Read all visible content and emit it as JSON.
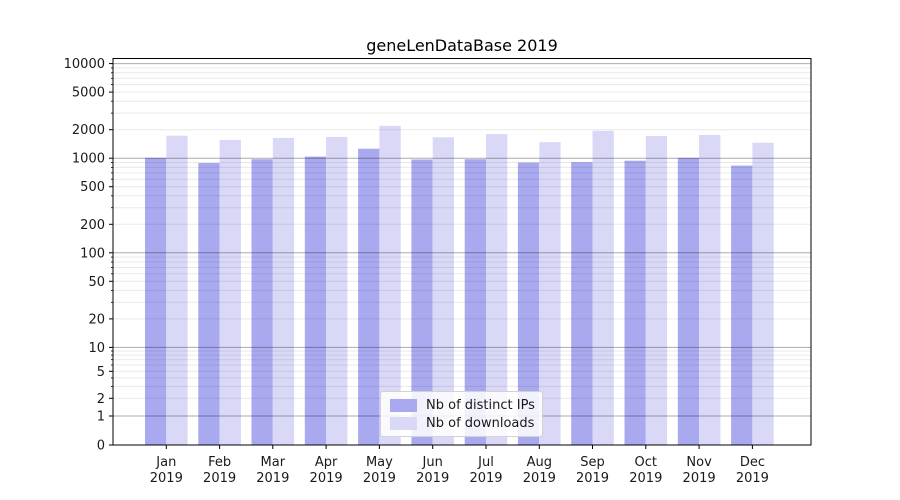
{
  "colors": {
    "distinct_ips": "#a9a9f0",
    "downloads": "#d9d9f7",
    "major_grid": "#adadad",
    "minor_grid": "#e9e9e9",
    "spine": "#000000",
    "tick_text": "#1a1a1a"
  },
  "chart_data": {
    "type": "bar",
    "title": "geneLenDataBase 2019",
    "categories": [
      "Jan",
      "Feb",
      "Mar",
      "Apr",
      "May",
      "Jun",
      "Jul",
      "Aug",
      "Sep",
      "Oct",
      "Nov",
      "Dec"
    ],
    "year_label": "2019",
    "series": [
      {
        "name": "Nb of distinct IPs",
        "key": "distinct_ips",
        "values": [
          1010,
          890,
          975,
          1040,
          1260,
          970,
          975,
          900,
          910,
          940,
          1010,
          835
        ]
      },
      {
        "name": "Nb of downloads",
        "key": "downloads",
        "values": [
          1730,
          1560,
          1640,
          1680,
          2200,
          1665,
          1800,
          1475,
          1950,
          1715,
          1760,
          1460
        ]
      }
    ],
    "xlabel": "",
    "ylabel": "",
    "yscale": "symlog",
    "y_ticks": [
      0,
      1,
      2,
      5,
      10,
      20,
      50,
      100,
      200,
      500,
      1000,
      2000,
      5000,
      10000
    ],
    "ylim": [
      0,
      11000
    ],
    "grid": true,
    "legend_position": "lower center"
  }
}
